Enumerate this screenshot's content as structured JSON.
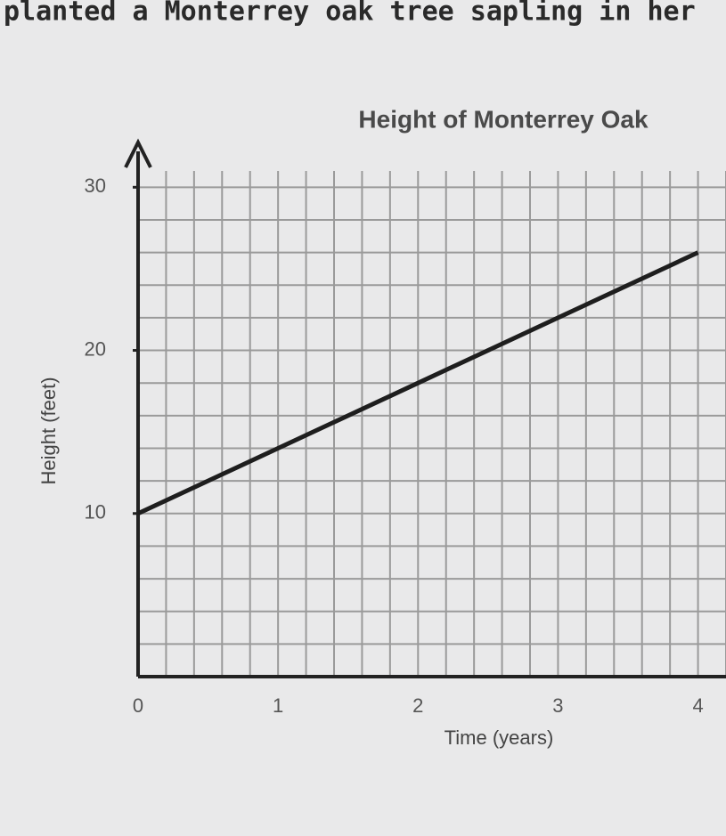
{
  "header": {
    "text": "planted a Monterrey oak tree sapling in her"
  },
  "chart_data": {
    "type": "line",
    "title": "Height of Monterrey Oak",
    "x_label": "Time (years)",
    "y_label": "Height (feet)",
    "x": [
      0,
      1,
      2,
      3,
      4
    ],
    "series": [
      {
        "name": "Height",
        "color": "#1e1e1e",
        "values": [
          10,
          14,
          18,
          22,
          26
        ]
      }
    ],
    "xlim": [
      0,
      4.2
    ],
    "ylim": [
      0,
      31
    ],
    "xticks": [
      0,
      1,
      2,
      3,
      4
    ],
    "yticks": [
      10,
      20,
      30
    ],
    "grid": true,
    "grid_step_x": 0.2,
    "grid_step_y": 2
  }
}
